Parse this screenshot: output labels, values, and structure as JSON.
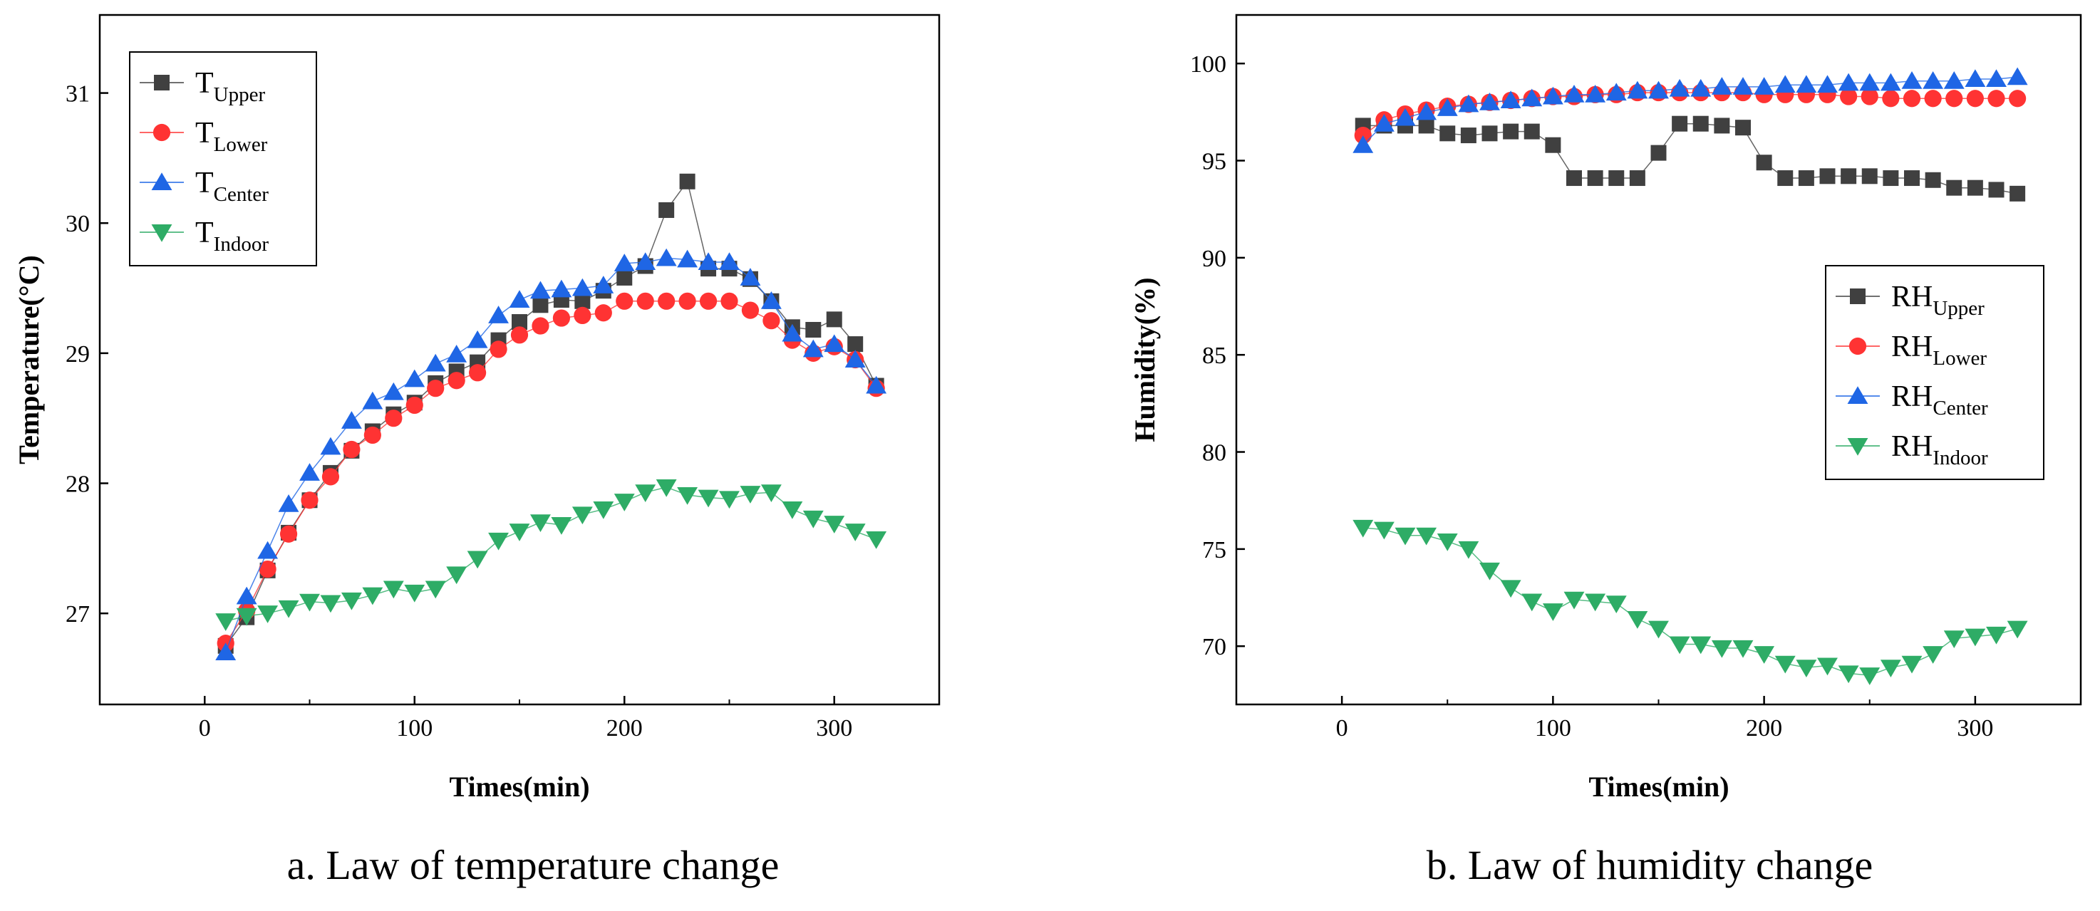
{
  "chart_data": [
    {
      "type": "line",
      "title": "",
      "caption": "a. Law of temperature change",
      "xlabel": "Times(min)",
      "ylabel": "Temperature(°C)",
      "xlim": [
        -50,
        350
      ],
      "ylim": [
        26.3,
        31.6
      ],
      "xticks": [
        0,
        100,
        200,
        300
      ],
      "yticks": [
        27,
        28,
        29,
        30,
        31
      ],
      "legend_position": "top-left",
      "x": [
        10,
        20,
        30,
        40,
        50,
        60,
        70,
        80,
        90,
        100,
        110,
        120,
        130,
        140,
        150,
        160,
        170,
        180,
        190,
        200,
        210,
        220,
        230,
        240,
        250,
        260,
        270,
        280,
        290,
        300,
        310,
        320
      ],
      "series": [
        {
          "name": "T",
          "subscript": "Upper",
          "marker": "square",
          "color": "#404040",
          "values": [
            26.75,
            26.97,
            27.33,
            27.62,
            27.87,
            28.08,
            28.25,
            28.4,
            28.53,
            28.62,
            28.77,
            28.86,
            28.93,
            29.1,
            29.24,
            29.37,
            29.41,
            29.4,
            29.48,
            29.58,
            29.67,
            30.1,
            30.32,
            29.65,
            29.65,
            29.57,
            29.4,
            29.2,
            29.18,
            29.26,
            29.07,
            28.75
          ]
        },
        {
          "name": "T",
          "subscript": "Lower",
          "marker": "circle",
          "color": "#ff3333",
          "values": [
            26.77,
            27.02,
            27.34,
            27.61,
            27.87,
            28.05,
            28.26,
            28.37,
            28.5,
            28.6,
            28.73,
            28.79,
            28.85,
            29.03,
            29.14,
            29.21,
            29.27,
            29.29,
            29.31,
            29.4,
            29.4,
            29.4,
            29.4,
            29.4,
            29.4,
            29.33,
            29.25,
            29.1,
            29.0,
            29.05,
            28.95,
            28.73
          ]
        },
        {
          "name": "T",
          "subscript": "Center",
          "marker": "triangle-up",
          "color": "#1f66e5",
          "values": [
            26.7,
            27.13,
            27.48,
            27.84,
            28.08,
            28.28,
            28.48,
            28.63,
            28.7,
            28.8,
            28.92,
            28.99,
            29.1,
            29.29,
            29.41,
            29.48,
            29.49,
            29.5,
            29.52,
            29.69,
            29.7,
            29.73,
            29.72,
            29.7,
            29.7,
            29.58,
            29.4,
            29.15,
            29.03,
            29.07,
            28.95,
            28.75
          ]
        },
        {
          "name": "T",
          "subscript": "Indoor",
          "marker": "triangle-down",
          "color": "#2eac66",
          "values": [
            26.94,
            26.98,
            27.0,
            27.04,
            27.09,
            27.08,
            27.1,
            27.14,
            27.19,
            27.16,
            27.19,
            27.3,
            27.42,
            27.56,
            27.63,
            27.7,
            27.68,
            27.76,
            27.8,
            27.86,
            27.93,
            27.97,
            27.91,
            27.89,
            27.88,
            27.92,
            27.93,
            27.8,
            27.73,
            27.69,
            27.63,
            27.57
          ]
        }
      ]
    },
    {
      "type": "line",
      "title": "",
      "caption": "b. Law of humidity change",
      "xlabel": "Times(min)",
      "ylabel": "Humidity(%)",
      "xlim": [
        -50,
        350
      ],
      "ylim": [
        67,
        102.5
      ],
      "xticks": [
        0,
        100,
        200,
        300
      ],
      "yticks": [
        70,
        75,
        80,
        85,
        90,
        95,
        100
      ],
      "legend_position": "center-right",
      "x": [
        10,
        20,
        30,
        40,
        50,
        60,
        70,
        80,
        90,
        100,
        110,
        120,
        130,
        140,
        150,
        160,
        170,
        180,
        190,
        200,
        210,
        220,
        230,
        240,
        250,
        260,
        270,
        280,
        290,
        300,
        310,
        320
      ],
      "series": [
        {
          "name": "RH",
          "subscript": "Upper",
          "marker": "square",
          "color": "#404040",
          "values": [
            96.8,
            96.8,
            96.8,
            96.8,
            96.4,
            96.3,
            96.4,
            96.5,
            96.5,
            95.8,
            94.1,
            94.1,
            94.1,
            94.1,
            95.4,
            96.9,
            96.9,
            96.8,
            96.7,
            94.9,
            94.1,
            94.1,
            94.2,
            94.2,
            94.2,
            94.1,
            94.1,
            94.0,
            93.6,
            93.6,
            93.5,
            93.3
          ]
        },
        {
          "name": "RH",
          "subscript": "Lower",
          "marker": "circle",
          "color": "#ff3333",
          "values": [
            96.3,
            97.1,
            97.4,
            97.6,
            97.8,
            97.9,
            98.0,
            98.1,
            98.2,
            98.3,
            98.3,
            98.4,
            98.4,
            98.5,
            98.5,
            98.5,
            98.5,
            98.5,
            98.5,
            98.4,
            98.4,
            98.4,
            98.4,
            98.3,
            98.3,
            98.2,
            98.2,
            98.2,
            98.2,
            98.2,
            98.2,
            98.2
          ]
        },
        {
          "name": "RH",
          "subscript": "Center",
          "marker": "triangle-up",
          "color": "#1f66e5",
          "values": [
            95.8,
            96.9,
            97.2,
            97.5,
            97.7,
            97.9,
            98.0,
            98.1,
            98.2,
            98.3,
            98.4,
            98.4,
            98.5,
            98.6,
            98.6,
            98.7,
            98.7,
            98.8,
            98.8,
            98.8,
            98.9,
            98.9,
            98.9,
            99.0,
            99.0,
            99.0,
            99.1,
            99.1,
            99.1,
            99.2,
            99.2,
            99.3
          ]
        },
        {
          "name": "RH",
          "subscript": "Indoor",
          "marker": "triangle-down",
          "color": "#2eac66",
          "values": [
            76.1,
            76.0,
            75.7,
            75.7,
            75.4,
            75.0,
            73.9,
            73.0,
            72.3,
            71.8,
            72.4,
            72.3,
            72.2,
            71.4,
            70.9,
            70.1,
            70.1,
            69.9,
            69.9,
            69.6,
            69.1,
            68.9,
            69.0,
            68.6,
            68.5,
            68.9,
            69.1,
            69.6,
            70.4,
            70.5,
            70.6,
            70.9
          ]
        }
      ]
    }
  ]
}
